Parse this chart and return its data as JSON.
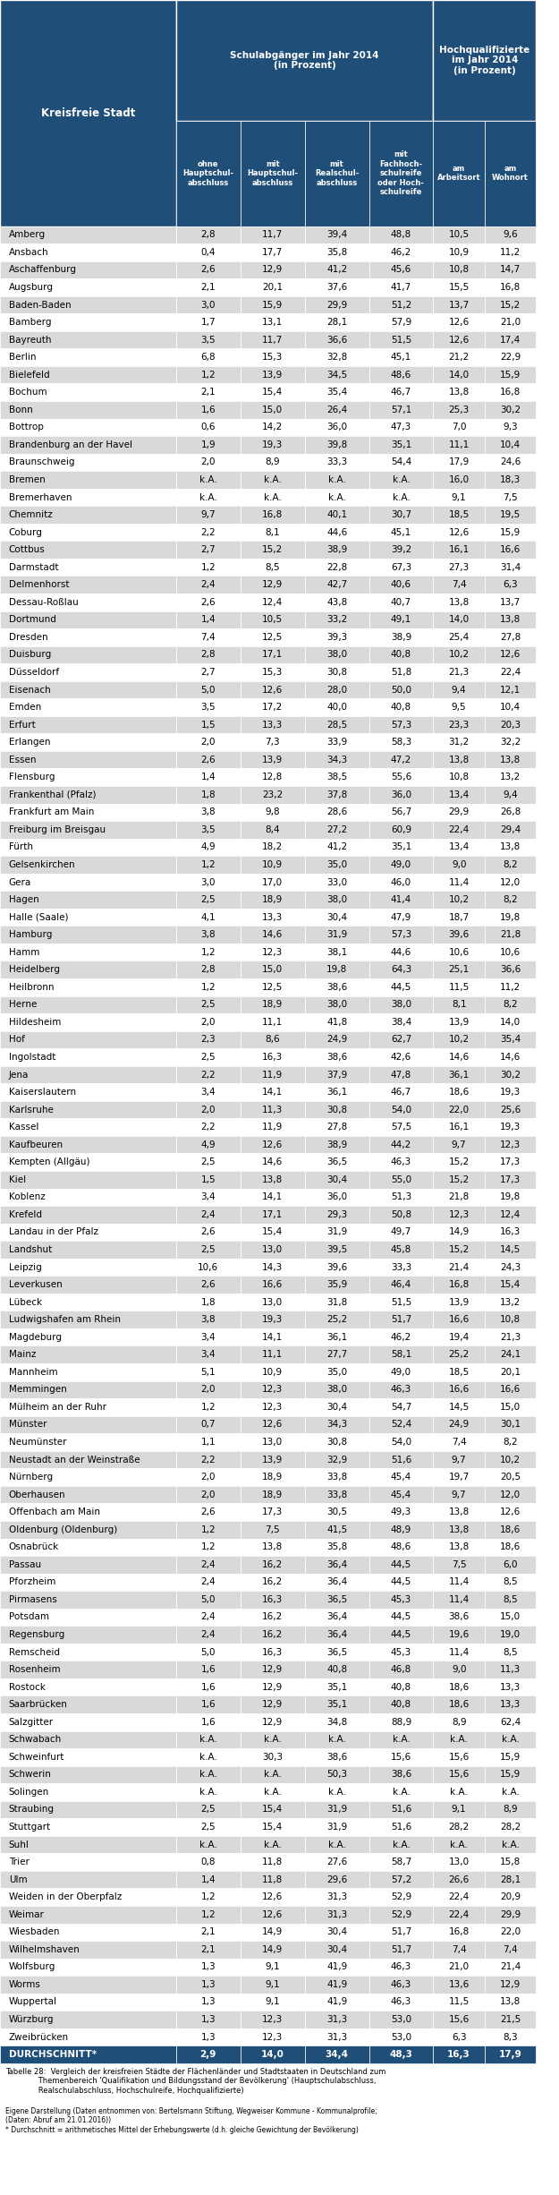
{
  "title": "Kreisfreie Stadt",
  "header1": "Schulabgänger im Jahr 2014\n(in Prozent)",
  "header2": "Hochqualifizierte\nim Jahr 2014\n(in Prozent)",
  "col_headers": [
    "ohne\nHauptschul-\nabschluss",
    "mit\nHauptschul-\nabschluss",
    "mit\nRealschul-\nabschluss",
    "mit\nFachhoch-\nschulreife\noder Hoch-\nschulreife",
    "am\nArbeitsort",
    "am\nWohnort"
  ],
  "rows": [
    [
      "Amberg",
      "2,8",
      "11,7",
      "39,4",
      "48,8",
      "10,5",
      "9,6"
    ],
    [
      "Ansbach",
      "0,4",
      "17,7",
      "35,8",
      "46,2",
      "10,9",
      "11,2"
    ],
    [
      "Aschaffenburg",
      "2,6",
      "12,9",
      "41,2",
      "45,6",
      "10,8",
      "14,7"
    ],
    [
      "Augsburg",
      "2,1",
      "20,1",
      "37,6",
      "41,7",
      "15,5",
      "16,8"
    ],
    [
      "Baden-Baden",
      "3,0",
      "15,9",
      "29,9",
      "51,2",
      "13,7",
      "15,2"
    ],
    [
      "Bamberg",
      "1,7",
      "13,1",
      "28,1",
      "57,9",
      "12,6",
      "21,0"
    ],
    [
      "Bayreuth",
      "3,5",
      "11,7",
      "36,6",
      "51,5",
      "12,6",
      "17,4"
    ],
    [
      "Berlin",
      "6,8",
      "15,3",
      "32,8",
      "45,1",
      "21,2",
      "22,9"
    ],
    [
      "Bielefeld",
      "1,2",
      "13,9",
      "34,5",
      "48,6",
      "14,0",
      "15,9"
    ],
    [
      "Bochum",
      "2,1",
      "15,4",
      "35,4",
      "46,7",
      "13,8",
      "16,8"
    ],
    [
      "Bonn",
      "1,6",
      "15,0",
      "26,4",
      "57,1",
      "25,3",
      "30,2"
    ],
    [
      "Bottrop",
      "0,6",
      "14,2",
      "36,0",
      "47,3",
      "7,0",
      "9,3"
    ],
    [
      "Brandenburg an der Havel",
      "1,9",
      "19,3",
      "39,8",
      "35,1",
      "11,1",
      "10,4"
    ],
    [
      "Braunschweig",
      "2,0",
      "8,9",
      "33,3",
      "54,4",
      "17,9",
      "24,6"
    ],
    [
      "Bremen",
      "k.A.",
      "k.A.",
      "k.A.",
      "k.A.",
      "16,0",
      "18,3"
    ],
    [
      "Bremerhaven",
      "k.A.",
      "k.A.",
      "k.A.",
      "k.A.",
      "9,1",
      "7,5"
    ],
    [
      "Chemnitz",
      "9,7",
      "16,8",
      "40,1",
      "30,7",
      "18,5",
      "19,5"
    ],
    [
      "Coburg",
      "2,2",
      "8,1",
      "44,6",
      "45,1",
      "12,6",
      "15,9"
    ],
    [
      "Cottbus",
      "2,7",
      "15,2",
      "38,9",
      "39,2",
      "16,1",
      "16,6"
    ],
    [
      "Darmstadt",
      "1,2",
      "8,5",
      "22,8",
      "67,3",
      "27,3",
      "31,4"
    ],
    [
      "Delmenhorst",
      "2,4",
      "12,9",
      "42,7",
      "40,6",
      "7,4",
      "6,3"
    ],
    [
      "Dessau-Roßlau",
      "2,6",
      "12,4",
      "43,8",
      "40,7",
      "13,8",
      "13,7"
    ],
    [
      "Dortmund",
      "1,4",
      "10,5",
      "33,2",
      "49,1",
      "14,0",
      "13,8"
    ],
    [
      "Dresden",
      "7,4",
      "12,5",
      "39,3",
      "38,9",
      "25,4",
      "27,8"
    ],
    [
      "Duisburg",
      "2,8",
      "17,1",
      "38,0",
      "40,8",
      "10,2",
      "12,6"
    ],
    [
      "Düsseldorf",
      "2,7",
      "15,3",
      "30,8",
      "51,8",
      "21,3",
      "22,4"
    ],
    [
      "Eisenach",
      "5,0",
      "12,6",
      "28,0",
      "50,0",
      "9,4",
      "12,1"
    ],
    [
      "Emden",
      "3,5",
      "17,2",
      "40,0",
      "40,8",
      "9,5",
      "10,4"
    ],
    [
      "Erfurt",
      "1,5",
      "13,3",
      "28,5",
      "57,3",
      "23,3",
      "20,3"
    ],
    [
      "Erlangen",
      "2,0",
      "7,3",
      "33,9",
      "58,3",
      "31,2",
      "32,2"
    ],
    [
      "Essen",
      "2,6",
      "13,9",
      "34,3",
      "47,2",
      "13,8",
      "13,8"
    ],
    [
      "Flensburg",
      "1,4",
      "12,8",
      "38,5",
      "55,6",
      "10,8",
      "13,2"
    ],
    [
      "Frankenthal (Pfalz)",
      "1,8",
      "23,2",
      "37,8",
      "36,0",
      "13,4",
      "9,4"
    ],
    [
      "Frankfurt am Main",
      "3,8",
      "9,8",
      "28,6",
      "56,7",
      "29,9",
      "26,8"
    ],
    [
      "Freiburg im Breisgau",
      "3,5",
      "8,4",
      "27,2",
      "60,9",
      "22,4",
      "29,4"
    ],
    [
      "Fürth",
      "4,9",
      "18,2",
      "41,2",
      "35,1",
      "13,4",
      "13,8"
    ],
    [
      "Gelsenkirchen",
      "1,2",
      "10,9",
      "35,0",
      "49,0",
      "9,0",
      "8,2"
    ],
    [
      "Gera",
      "3,0",
      "17,0",
      "33,0",
      "46,0",
      "11,4",
      "12,0"
    ],
    [
      "Hagen",
      "2,5",
      "18,9",
      "38,0",
      "41,4",
      "10,2",
      "8,2"
    ],
    [
      "Halle (Saale)",
      "4,1",
      "13,3",
      "30,4",
      "47,9",
      "18,7",
      "19,8"
    ],
    [
      "Hamburg",
      "3,8",
      "14,6",
      "31,9",
      "57,3",
      "39,6",
      "21,8"
    ],
    [
      "Hamm",
      "1,2",
      "12,3",
      "38,1",
      "44,6",
      "10,6",
      "10,6"
    ],
    [
      "Heidelberg",
      "2,8",
      "15,0",
      "19,8",
      "64,3",
      "25,1",
      "36,6"
    ],
    [
      "Heilbronn",
      "1,2",
      "12,5",
      "38,6",
      "44,5",
      "11,5",
      "11,2"
    ],
    [
      "Herne",
      "2,5",
      "18,9",
      "38,0",
      "38,0",
      "8,1",
      "8,2"
    ],
    [
      "Hildesheim",
      "2,0",
      "11,1",
      "41,8",
      "38,4",
      "13,9",
      "14,0"
    ],
    [
      "Hof",
      "2,3",
      "8,6",
      "24,9",
      "62,7",
      "10,2",
      "35,4"
    ],
    [
      "Ingolstadt",
      "2,5",
      "16,3",
      "38,6",
      "42,6",
      "14,6",
      "14,6"
    ],
    [
      "Jena",
      "2,2",
      "11,9",
      "37,9",
      "47,8",
      "36,1",
      "30,2"
    ],
    [
      "Kaiserslautern",
      "3,4",
      "14,1",
      "36,1",
      "46,7",
      "18,6",
      "19,3"
    ],
    [
      "Karlsruhe",
      "2,0",
      "11,3",
      "30,8",
      "54,0",
      "22,0",
      "25,6"
    ],
    [
      "Kassel",
      "2,2",
      "11,9",
      "27,8",
      "57,5",
      "16,1",
      "19,3"
    ],
    [
      "Kaufbeuren",
      "4,9",
      "12,6",
      "38,9",
      "44,2",
      "9,7",
      "12,3"
    ],
    [
      "Kempten (Allgäu)",
      "2,5",
      "14,6",
      "36,5",
      "46,3",
      "15,2",
      "17,3"
    ],
    [
      "Kiel",
      "1,5",
      "13,8",
      "30,4",
      "55,0",
      "15,2",
      "17,3"
    ],
    [
      "Koblenz",
      "3,4",
      "14,1",
      "36,0",
      "51,3",
      "21,8",
      "19,8"
    ],
    [
      "Krefeld",
      "2,4",
      "17,1",
      "29,3",
      "50,8",
      "12,3",
      "12,4"
    ],
    [
      "Landau in der Pfalz",
      "2,6",
      "15,4",
      "31,9",
      "49,7",
      "14,9",
      "16,3"
    ],
    [
      "Landshut",
      "2,5",
      "13,0",
      "39,5",
      "45,8",
      "15,2",
      "14,5"
    ],
    [
      "Leipzig",
      "10,6",
      "14,3",
      "39,6",
      "33,3",
      "21,4",
      "24,3"
    ],
    [
      "Leverkusen",
      "2,6",
      "16,6",
      "35,9",
      "46,4",
      "16,8",
      "15,4"
    ],
    [
      "Lübeck",
      "1,8",
      "13,0",
      "31,8",
      "51,5",
      "13,9",
      "13,2"
    ],
    [
      "Ludwigshafen am Rhein",
      "3,8",
      "19,3",
      "25,2",
      "51,7",
      "16,6",
      "10,8"
    ],
    [
      "Magdeburg",
      "3,4",
      "14,1",
      "36,1",
      "46,2",
      "19,4",
      "21,3"
    ],
    [
      "Mainz",
      "3,4",
      "11,1",
      "27,7",
      "58,1",
      "25,2",
      "24,1"
    ],
    [
      "Mannheim",
      "5,1",
      "10,9",
      "35,0",
      "49,0",
      "18,5",
      "20,1"
    ],
    [
      "Memmingen",
      "2,0",
      "12,3",
      "38,0",
      "46,3",
      "16,6",
      "16,6"
    ],
    [
      "Mülheim an der Ruhr",
      "1,2",
      "12,3",
      "30,4",
      "54,7",
      "14,5",
      "15,0"
    ],
    [
      "Münster",
      "0,7",
      "12,6",
      "34,3",
      "52,4",
      "24,9",
      "30,1"
    ],
    [
      "Neumünster",
      "1,1",
      "13,0",
      "30,8",
      "54,0",
      "7,4",
      "8,2"
    ],
    [
      "Neustadt an der Weinstraße",
      "2,2",
      "13,9",
      "32,9",
      "51,6",
      "9,7",
      "10,2"
    ],
    [
      "Nürnberg",
      "2,0",
      "18,9",
      "33,8",
      "45,4",
      "19,7",
      "20,5"
    ],
    [
      "Oberhausen",
      "2,0",
      "18,9",
      "33,8",
      "45,4",
      "9,7",
      "12,0"
    ],
    [
      "Offenbach am Main",
      "2,6",
      "17,3",
      "30,5",
      "49,3",
      "13,8",
      "12,6"
    ],
    [
      "Oldenburg (Oldenburg)",
      "1,2",
      "7,5",
      "41,5",
      "48,9",
      "13,8",
      "18,6"
    ],
    [
      "Osnabrück",
      "1,2",
      "13,8",
      "35,8",
      "48,6",
      "13,8",
      "18,6"
    ],
    [
      "Passau",
      "2,4",
      "16,2",
      "36,4",
      "44,5",
      "7,5",
      "6,0"
    ],
    [
      "Pforzheim",
      "2,4",
      "16,2",
      "36,4",
      "44,5",
      "11,4",
      "8,5"
    ],
    [
      "Pirmasens",
      "5,0",
      "16,3",
      "36,5",
      "45,3",
      "11,4",
      "8,5"
    ],
    [
      "Potsdam",
      "2,4",
      "16,2",
      "36,4",
      "44,5",
      "38,6",
      "15,0"
    ],
    [
      "Regensburg",
      "2,4",
      "16,2",
      "36,4",
      "44,5",
      "19,6",
      "19,0"
    ],
    [
      "Remscheid",
      "5,0",
      "16,3",
      "36,5",
      "45,3",
      "11,4",
      "8,5"
    ],
    [
      "Rosenheim",
      "1,6",
      "12,9",
      "40,8",
      "46,8",
      "9,0",
      "11,3"
    ],
    [
      "Rostock",
      "1,6",
      "12,9",
      "35,1",
      "40,8",
      "18,6",
      "13,3"
    ],
    [
      "Saarbrücken",
      "1,6",
      "12,9",
      "35,1",
      "40,8",
      "18,6",
      "13,3"
    ],
    [
      "Salzgitter",
      "1,6",
      "12,9",
      "34,8",
      "88,9",
      "8,9",
      "62,4"
    ],
    [
      "Schwabach",
      "k.A.",
      "k.A.",
      "k.A.",
      "k.A.",
      "k.A.",
      "k.A."
    ],
    [
      "Schweinfurt",
      "k.A.",
      "30,3",
      "38,6",
      "15,6",
      "15,6",
      "15,9"
    ],
    [
      "Schwerin",
      "k.A.",
      "k.A.",
      "50,3",
      "38,6",
      "15,6",
      "15,9"
    ],
    [
      "Solingen",
      "k.A.",
      "k.A.",
      "k.A.",
      "k.A.",
      "k.A.",
      "k.A."
    ],
    [
      "Straubing",
      "2,5",
      "15,4",
      "31,9",
      "51,6",
      "9,1",
      "8,9"
    ],
    [
      "Stuttgart",
      "2,5",
      "15,4",
      "31,9",
      "51,6",
      "28,2",
      "28,2"
    ],
    [
      "Suhl",
      "k.A.",
      "k.A.",
      "k.A.",
      "k.A.",
      "k.A.",
      "k.A."
    ],
    [
      "Trier",
      "0,8",
      "11,8",
      "27,6",
      "58,7",
      "13,0",
      "15,8"
    ],
    [
      "Ulm",
      "1,4",
      "11,8",
      "29,6",
      "57,2",
      "26,6",
      "28,1"
    ],
    [
      "Weiden in der Oberpfalz",
      "1,2",
      "12,6",
      "31,3",
      "52,9",
      "22,4",
      "20,9"
    ],
    [
      "Weimar",
      "1,2",
      "12,6",
      "31,3",
      "52,9",
      "22,4",
      "29,9"
    ],
    [
      "Wiesbaden",
      "2,1",
      "14,9",
      "30,4",
      "51,7",
      "16,8",
      "22,0"
    ],
    [
      "Wilhelmshaven",
      "2,1",
      "14,9",
      "30,4",
      "51,7",
      "7,4",
      "7,4"
    ],
    [
      "Wolfsburg",
      "1,3",
      "9,1",
      "41,9",
      "46,3",
      "21,0",
      "21,4"
    ],
    [
      "Worms",
      "1,3",
      "9,1",
      "41,9",
      "46,3",
      "13,6",
      "12,9"
    ],
    [
      "Wuppertal",
      "1,3",
      "9,1",
      "41,9",
      "46,3",
      "11,5",
      "13,8"
    ],
    [
      "Würzburg",
      "1,3",
      "12,3",
      "31,3",
      "53,0",
      "15,6",
      "21,5"
    ],
    [
      "Zweibrücken",
      "1,3",
      "12,3",
      "31,3",
      "53,0",
      "6,3",
      "8,3"
    ],
    [
      "DURCHSCHNITT*",
      "2,9",
      "14,0",
      "34,4",
      "48,3",
      "16,3",
      "17,9"
    ]
  ],
  "footer": "Tabelle 28:  Vergleich der kreisfreien Städte der Flächenländer und Stadtstaaten in Deutschland zum\n              Themenbereich 'Qualifikation und Bildungsstand der Bevölkerung' (Hauptschulabschluss,\n              Realschulabschluss, Hochschulreife, Hochqualifizierte)",
  "source": "Eigene Darstellung (Daten entnommen von: Bertelsmann Stiftung, Wegweiser Kommune - Kommunalprofile;\n(Daten: Abruf am 21.01.2016))\n* Durchschnitt = arithmetisches Mittel der Erhebungswerte (d.h. gleiche Gewichtung der Bevölkerung)",
  "header_bg": "#1F4E79",
  "header_text": "#FFFFFF",
  "row_bg_odd": "#D9D9D9",
  "row_bg_even": "#FFFFFF",
  "last_row_bg": "#1F4E79",
  "last_row_text": "#FFFFFF"
}
